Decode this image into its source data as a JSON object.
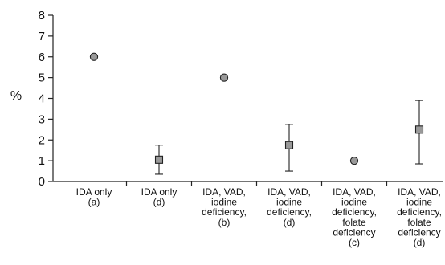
{
  "chart_data": {
    "type": "scatter",
    "ylabel": "%",
    "ylim": [
      0,
      8
    ],
    "yticks": [
      "0",
      "1",
      "2",
      "3",
      "4",
      "5",
      "6",
      "7",
      "8"
    ],
    "grid": false,
    "categories": [
      [
        "IDA only",
        "(a)"
      ],
      [
        "IDA only",
        "(d)"
      ],
      [
        "IDA, VAD,",
        "iodine",
        "deficiency,",
        "(b)"
      ],
      [
        "IDA, VAD,",
        "iodine",
        "deficiency,",
        "(d)"
      ],
      [
        "IDA, VAD,",
        "iodine",
        "deficiency,",
        "folate",
        "deficiency",
        "(c)"
      ],
      [
        "IDA, VAD,",
        "iodine",
        "deficiency,",
        "folate",
        "deficiency",
        "(d)"
      ]
    ],
    "points": [
      {
        "category": 0,
        "value": 6.0,
        "marker": "circle"
      },
      {
        "category": 1,
        "value": 1.05,
        "marker": "square",
        "low": 0.35,
        "high": 1.75
      },
      {
        "category": 2,
        "value": 5.0,
        "marker": "circle"
      },
      {
        "category": 3,
        "value": 1.75,
        "marker": "square",
        "low": 0.5,
        "high": 2.75
      },
      {
        "category": 4,
        "value": 1.0,
        "marker": "circle"
      },
      {
        "category": 5,
        "value": 2.5,
        "marker": "square",
        "low": 0.85,
        "high": 3.9
      }
    ],
    "colors": {
      "marker_fill": "#999999",
      "stroke": "#222222"
    }
  }
}
